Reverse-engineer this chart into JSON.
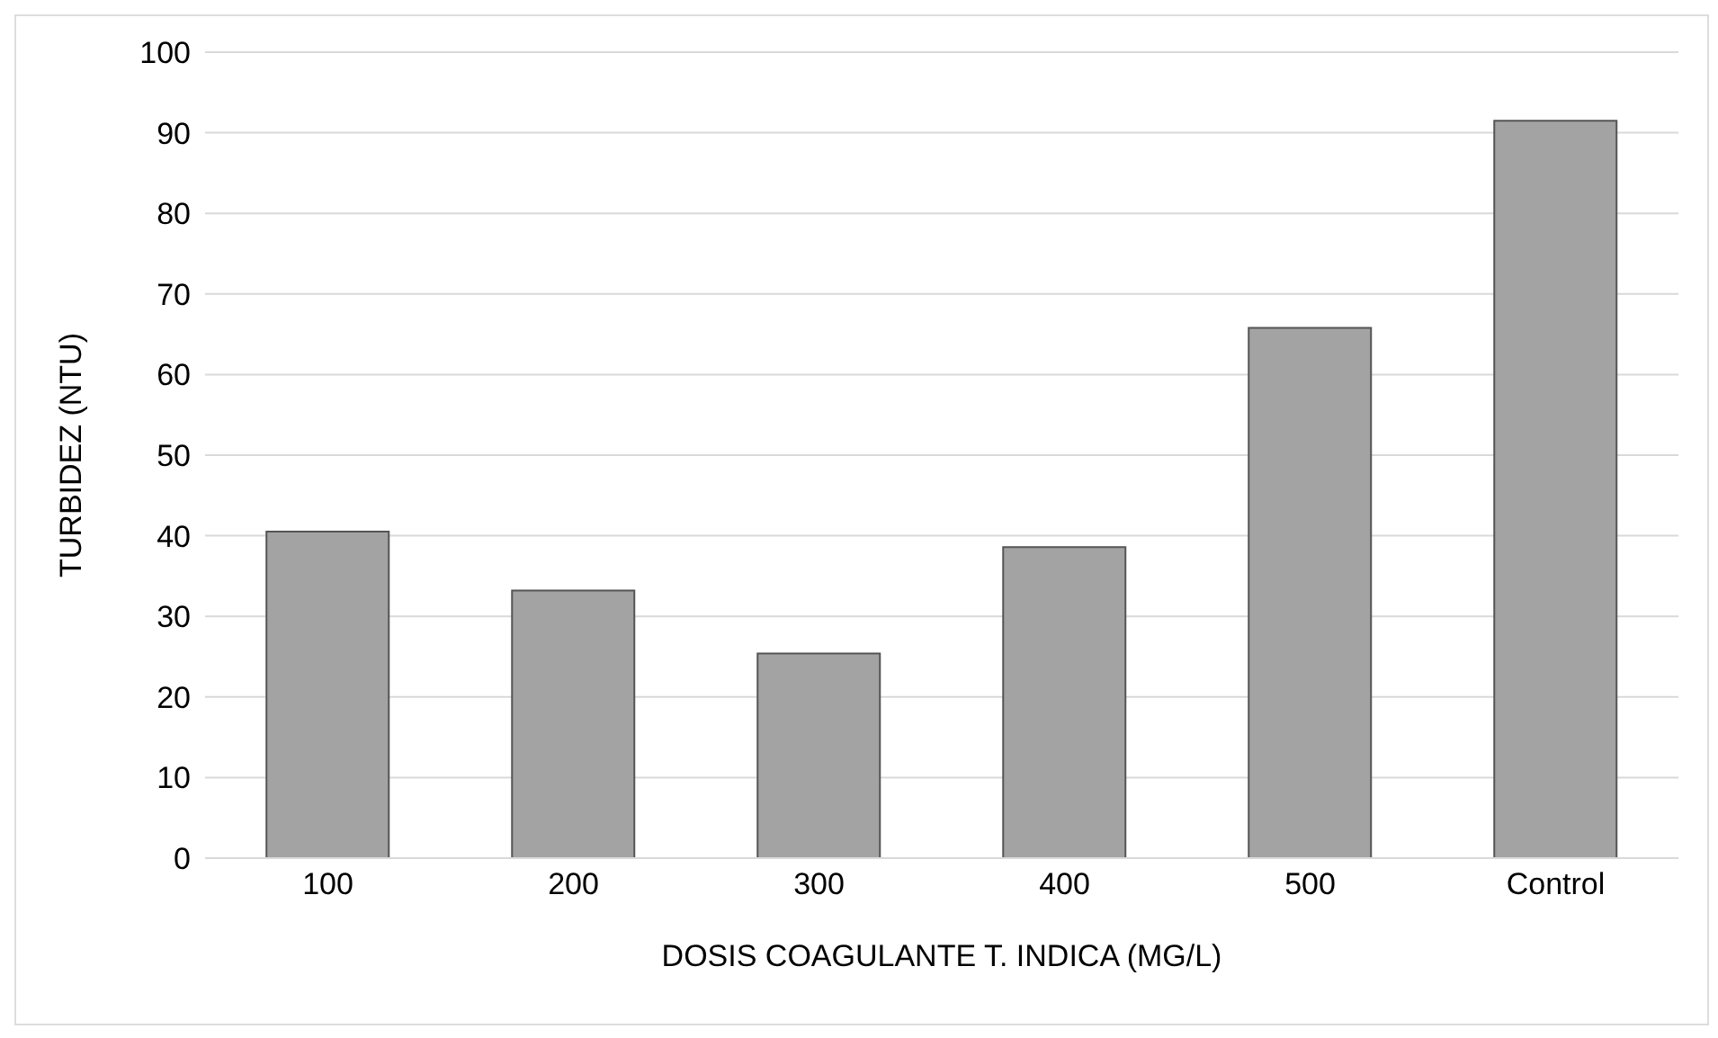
{
  "chart_data": {
    "type": "bar",
    "xlabel": "DOSIS COAGULANTE T. INDICA (MG/L)",
    "ylabel": "TURBIDEZ (NTU)",
    "categories": [
      "100",
      "200",
      "300",
      "400",
      "500",
      "Control"
    ],
    "values": [
      40.5,
      33.2,
      25.4,
      38.6,
      65.8,
      91.5
    ],
    "color": "#a3a3a3",
    "ylim": [
      0,
      100
    ],
    "yticks": [
      0,
      10,
      20,
      30,
      40,
      50,
      60,
      70,
      80,
      90,
      100
    ],
    "grid": "y"
  }
}
